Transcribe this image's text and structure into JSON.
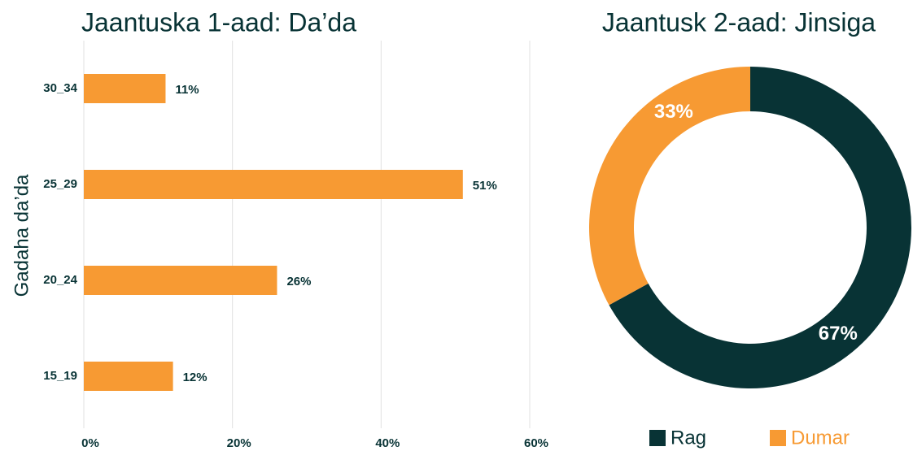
{
  "chart_data": [
    {
      "type": "bar",
      "orientation": "horizontal",
      "title": "Jaantuska 1-aad: Da’da",
      "y_label": "Gadaha da’da",
      "categories": [
        "15_19",
        "20_24",
        "25_29",
        "30_34"
      ],
      "values": [
        12,
        26,
        51,
        11
      ],
      "value_labels": [
        "12%",
        "26%",
        "51%",
        "11%"
      ],
      "color": "#f79a33",
      "xlim": [
        0,
        60
      ],
      "xticks": [
        {
          "value": 0,
          "label": "0%"
        },
        {
          "value": 20,
          "label": "20%"
        },
        {
          "value": 40,
          "label": "40%"
        },
        {
          "value": 60,
          "label": "60%"
        }
      ],
      "grid": true
    },
    {
      "type": "donut",
      "title": "Jaantusk 2-aad: Jinsiga",
      "categories": [
        "Rag",
        "Dumar"
      ],
      "values": [
        67,
        33
      ],
      "value_labels": [
        "67%",
        "33%"
      ],
      "colors": [
        "#083335",
        "#f79a33"
      ],
      "legend": "bottom"
    }
  ]
}
